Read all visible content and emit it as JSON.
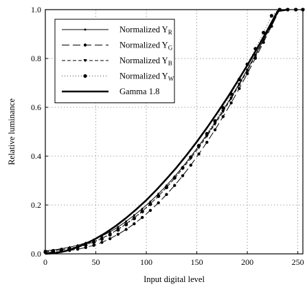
{
  "chart_data": {
    "type": "line",
    "xlabel": "Input digital level",
    "ylabel": "Relative luminance",
    "xlim": [
      0,
      255
    ],
    "ylim": [
      0,
      1.0
    ],
    "x_ticks": [
      "0",
      "50",
      "100",
      "150",
      "200",
      "250"
    ],
    "y_ticks": [
      "0.0",
      "0.2",
      "0.4",
      "0.6",
      "0.8",
      "1.0"
    ],
    "grid": "dotted",
    "legend_position": "top-left",
    "series": [
      {
        "name": "Normalized Y",
        "subscript": "R",
        "style": "solid-small-markers",
        "x": [
          0,
          8,
          16,
          24,
          32,
          40,
          48,
          56,
          64,
          72,
          80,
          88,
          96,
          104,
          112,
          120,
          128,
          136,
          144,
          152,
          160,
          168,
          176,
          184,
          192,
          200,
          208,
          216,
          224,
          232,
          240,
          248,
          255
        ],
        "y": [
          0.012,
          0.016,
          0.021,
          0.027,
          0.035,
          0.045,
          0.058,
          0.073,
          0.09,
          0.11,
          0.133,
          0.158,
          0.185,
          0.214,
          0.246,
          0.28,
          0.317,
          0.356,
          0.398,
          0.442,
          0.488,
          0.537,
          0.588,
          0.641,
          0.697,
          0.755,
          0.815,
          0.876,
          0.94,
          1.0,
          1.0,
          1.0,
          1.0
        ]
      },
      {
        "name": "Normalized Y",
        "subscript": "G",
        "style": "long-dash-round-markers",
        "x": [
          0,
          8,
          16,
          24,
          32,
          40,
          48,
          56,
          64,
          72,
          80,
          88,
          96,
          104,
          112,
          120,
          128,
          136,
          144,
          152,
          160,
          168,
          176,
          184,
          192,
          200,
          208,
          216,
          224,
          232,
          240,
          248,
          255
        ],
        "y": [
          0.005,
          0.007,
          0.01,
          0.014,
          0.019,
          0.026,
          0.035,
          0.047,
          0.062,
          0.08,
          0.1,
          0.123,
          0.149,
          0.178,
          0.209,
          0.243,
          0.28,
          0.32,
          0.363,
          0.409,
          0.457,
          0.508,
          0.562,
          0.618,
          0.677,
          0.738,
          0.801,
          0.866,
          0.932,
          1.0,
          1.0,
          1.0,
          1.0
        ]
      },
      {
        "name": "Normalized Y",
        "subscript": "B",
        "style": "short-dash-triangle-markers",
        "x": [
          0,
          8,
          16,
          24,
          32,
          40,
          48,
          56,
          64,
          72,
          80,
          88,
          96,
          104,
          112,
          120,
          128,
          136,
          144,
          152,
          160,
          168,
          176,
          184,
          192,
          200,
          208,
          216,
          224,
          232,
          240,
          248,
          255
        ],
        "y": [
          0.01,
          0.013,
          0.017,
          0.022,
          0.029,
          0.038,
          0.05,
          0.064,
          0.081,
          0.101,
          0.123,
          0.148,
          0.175,
          0.205,
          0.237,
          0.272,
          0.309,
          0.349,
          0.391,
          0.435,
          0.482,
          0.531,
          0.582,
          0.636,
          0.692,
          0.75,
          0.811,
          0.874,
          0.938,
          1.0,
          1.0,
          1.0,
          1.0
        ]
      },
      {
        "name": "Normalized Y",
        "subscript": "W",
        "style": "dotted-large-dots",
        "x": [
          0,
          8,
          16,
          24,
          32,
          40,
          48,
          56,
          64,
          72,
          80,
          88,
          96,
          104,
          112,
          120,
          128,
          136,
          144,
          152,
          160,
          168,
          176,
          184,
          192,
          200,
          208,
          216,
          224,
          232,
          240,
          248,
          255
        ],
        "y": [
          0.008,
          0.011,
          0.015,
          0.02,
          0.027,
          0.036,
          0.047,
          0.061,
          0.078,
          0.098,
          0.12,
          0.145,
          0.173,
          0.203,
          0.236,
          0.272,
          0.311,
          0.352,
          0.396,
          0.443,
          0.492,
          0.544,
          0.598,
          0.655,
          0.714,
          0.776,
          0.84,
          0.906,
          0.975,
          1.0,
          1.0,
          1.0,
          1.0
        ]
      },
      {
        "name": "Gamma 1.8",
        "style": "thick-solid",
        "x": [
          0,
          10,
          20,
          30,
          40,
          50,
          60,
          70,
          80,
          90,
          100,
          110,
          120,
          130,
          140,
          150,
          160,
          170,
          180,
          190,
          200,
          210,
          220,
          230,
          240
        ],
        "y": [
          0.0,
          0.0033,
          0.0117,
          0.0245,
          0.0414,
          0.0623,
          0.0868,
          0.115,
          0.147,
          0.182,
          0.22,
          0.262,
          0.307,
          0.354,
          0.405,
          0.459,
          0.516,
          0.576,
          0.638,
          0.704,
          0.772,
          0.843,
          0.917,
          0.994,
          1.0
        ]
      }
    ]
  }
}
